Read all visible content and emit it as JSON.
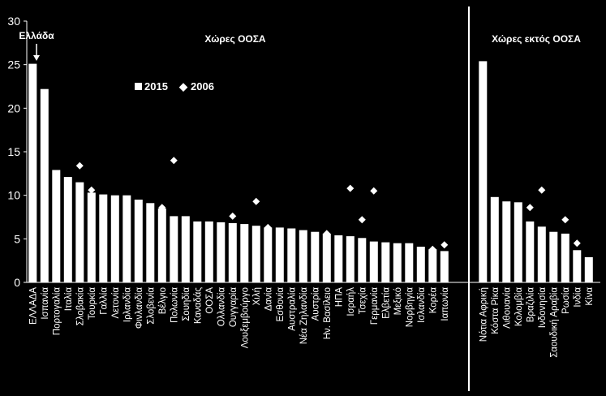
{
  "chart_data": {
    "type": "bar",
    "ylim": [
      0,
      30
    ],
    "yticks": [
      0,
      5,
      10,
      15,
      20,
      25,
      30
    ],
    "legend": {
      "bar_label": "2015",
      "marker_label": "2006",
      "marker_symbol": "◆"
    },
    "annotation": "Ελλάδα",
    "groups": [
      {
        "title": "Χώρες ΟΟΣΑ",
        "categories": [
          "ΕΛΛΑΔΑ",
          "Ισπανία",
          "Πορτογαλία",
          "Ιταλία",
          "Σλοβακία",
          "Τουρκία",
          "Γαλλία",
          "Λετονία",
          "Ιρλανδία",
          "Φινλανδία",
          "Σλοβενία",
          "Βέλγιο",
          "Πολωνία",
          "Σουηδία",
          "Καναδάς",
          "ΟΟΣΑ",
          "Ολλανδία",
          "Ουγγαρία",
          "Λουξεμβούργο",
          "Χιλή",
          "Δανία",
          "Εσθονία",
          "Αυστραλία",
          "Νέα Ζηλανδία",
          "Αυστρία",
          "Ην. Βασίλειο",
          "ΗΠΑ",
          "Ισραήλ",
          "Τσεχία",
          "Γερμανία",
          "Ελβετία",
          "Μεξικό",
          "Νορβηγία",
          "Ισλανδία",
          "Κορέα",
          "Ιαπωνία"
        ],
        "series_2015": [
          25.1,
          22.2,
          12.9,
          12.1,
          11.5,
          10.3,
          10.1,
          10.0,
          10.0,
          9.5,
          9.1,
          8.5,
          7.6,
          7.6,
          7.0,
          7.0,
          6.9,
          6.8,
          6.7,
          6.5,
          6.3,
          6.3,
          6.2,
          6.0,
          5.8,
          5.6,
          5.4,
          5.3,
          5.1,
          4.7,
          4.6,
          4.5,
          4.5,
          4.1,
          3.8,
          3.6
        ],
        "series_2006": [
          null,
          null,
          null,
          null,
          13.4,
          10.6,
          null,
          null,
          null,
          null,
          null,
          8.6,
          14.0,
          null,
          null,
          null,
          null,
          7.6,
          null,
          9.3,
          6.3,
          null,
          null,
          null,
          null,
          5.6,
          null,
          10.8,
          7.2,
          10.5,
          null,
          null,
          null,
          null,
          3.8,
          4.3
        ]
      },
      {
        "title": "Χώρες εκτός ΟΟΣΑ",
        "categories": [
          "Νότια Αφρική",
          "Κόστα Ρίκα",
          "Λιθουανία",
          "Κολομβία",
          "Βραζιλία",
          "Ινδονησία",
          "Σαουδική Αραβία",
          "Ρωσία",
          "Ινδία",
          "Κίνα"
        ],
        "series_2015": [
          25.4,
          9.8,
          9.3,
          9.2,
          7.0,
          6.4,
          5.8,
          5.6,
          3.7,
          2.9
        ],
        "series_2006": [
          null,
          null,
          null,
          null,
          8.6,
          10.6,
          null,
          7.2,
          4.5,
          null
        ]
      }
    ],
    "colors": {
      "background": "#000000",
      "bar": "#ffffff",
      "text": "#ffffff",
      "axis": "#ffffff"
    }
  }
}
